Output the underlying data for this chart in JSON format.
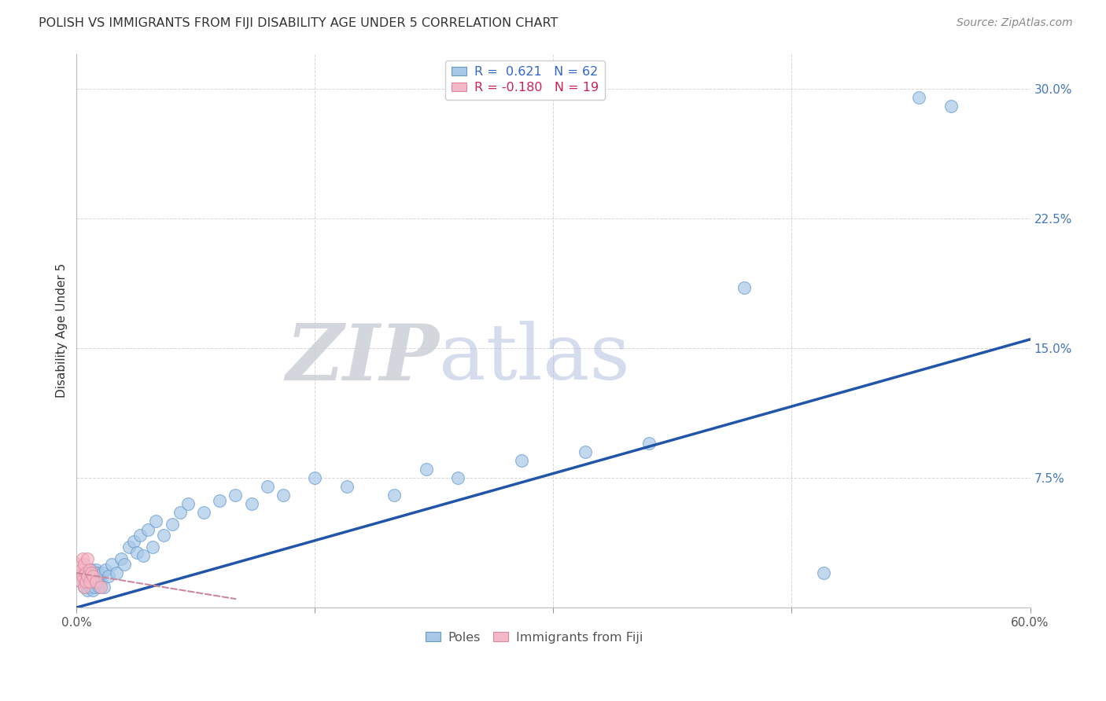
{
  "title": "POLISH VS IMMIGRANTS FROM FIJI DISABILITY AGE UNDER 5 CORRELATION CHART",
  "source": "Source: ZipAtlas.com",
  "ylabel": "Disability Age Under 5",
  "watermark_zip": "ZIP",
  "watermark_atlas": "atlas",
  "xlim": [
    0.0,
    0.6
  ],
  "ylim": [
    0.0,
    0.32
  ],
  "xticks": [
    0.0,
    0.15,
    0.3,
    0.45,
    0.6
  ],
  "xtick_labels": [
    "0.0%",
    "",
    "",
    "",
    "60.0%"
  ],
  "ytick_labels": [
    "",
    "7.5%",
    "15.0%",
    "22.5%",
    "30.0%"
  ],
  "yticks": [
    0.0,
    0.075,
    0.15,
    0.225,
    0.3
  ],
  "blue_color": "#a8c8e8",
  "blue_edge": "#6699cc",
  "pink_color": "#f4b8c8",
  "pink_edge": "#dd8899",
  "line_blue": "#2255aa",
  "line_pink": "#cc8899",
  "poles_x": [
    0.003,
    0.004,
    0.005,
    0.005,
    0.006,
    0.006,
    0.007,
    0.007,
    0.007,
    0.008,
    0.008,
    0.009,
    0.009,
    0.01,
    0.01,
    0.011,
    0.011,
    0.012,
    0.012,
    0.013,
    0.013,
    0.014,
    0.014,
    0.015,
    0.016,
    0.017,
    0.018,
    0.02,
    0.022,
    0.025,
    0.028,
    0.03,
    0.033,
    0.036,
    0.038,
    0.04,
    0.042,
    0.045,
    0.048,
    0.05,
    0.055,
    0.06,
    0.065,
    0.07,
    0.08,
    0.09,
    0.1,
    0.11,
    0.12,
    0.13,
    0.15,
    0.17,
    0.2,
    0.22,
    0.24,
    0.28,
    0.32,
    0.36,
    0.42,
    0.47,
    0.53,
    0.55
  ],
  "poles_y": [
    0.015,
    0.018,
    0.012,
    0.02,
    0.014,
    0.018,
    0.01,
    0.016,
    0.02,
    0.012,
    0.018,
    0.015,
    0.022,
    0.01,
    0.018,
    0.012,
    0.02,
    0.015,
    0.022,
    0.014,
    0.02,
    0.012,
    0.018,
    0.015,
    0.02,
    0.012,
    0.022,
    0.018,
    0.025,
    0.02,
    0.028,
    0.025,
    0.035,
    0.038,
    0.032,
    0.042,
    0.03,
    0.045,
    0.035,
    0.05,
    0.042,
    0.048,
    0.055,
    0.06,
    0.055,
    0.062,
    0.065,
    0.06,
    0.07,
    0.065,
    0.075,
    0.07,
    0.065,
    0.08,
    0.075,
    0.085,
    0.09,
    0.095,
    0.185,
    0.02,
    0.295,
    0.29
  ],
  "fiji_x": [
    0.001,
    0.002,
    0.002,
    0.003,
    0.003,
    0.004,
    0.004,
    0.005,
    0.005,
    0.006,
    0.006,
    0.007,
    0.007,
    0.008,
    0.008,
    0.009,
    0.01,
    0.012,
    0.015
  ],
  "fiji_y": [
    0.02,
    0.025,
    0.018,
    0.022,
    0.015,
    0.028,
    0.018,
    0.025,
    0.012,
    0.02,
    0.015,
    0.028,
    0.018,
    0.022,
    0.015,
    0.02,
    0.018,
    0.015,
    0.012
  ],
  "blue_trendline_x": [
    0.0,
    0.6
  ],
  "blue_trendline_y": [
    0.0,
    0.155
  ],
  "pink_trendline_x": [
    0.0,
    0.1
  ],
  "pink_trendline_y": [
    0.02,
    0.005
  ]
}
